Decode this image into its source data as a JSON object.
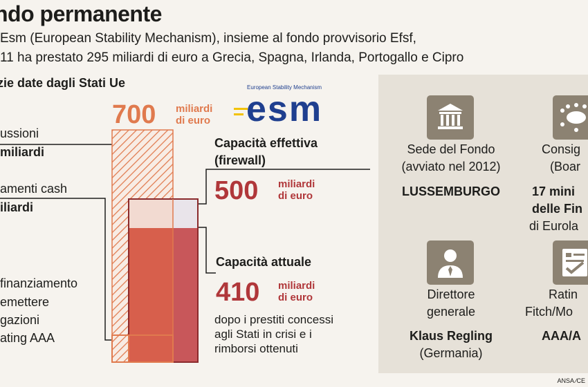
{
  "header": {
    "title": "ndo permanente",
    "line1": "Esm (European Stability Mechanism), insieme al fondo provvisorio Efsf,",
    "line2": "11 ha prestato 295 miliardi di euro a Grecia, Spagna, Irlanda, Portogallo e Cipro"
  },
  "left": {
    "section": "zie date dagli Stati Ue",
    "item1_a": "ussioni",
    "item1_b": "miliardi",
    "item2_a": "amenti cash",
    "item2_b": "iliardi",
    "item3_a": "finanziamento",
    "item3_b": "emettere",
    "item3_c": "gazioni",
    "item3_d": "ating AAA"
  },
  "esm_logo": {
    "small_text": "European Stability Mechanism",
    "text": "esm"
  },
  "figures": {
    "total_value": "700",
    "total_unit_1": "miliardi",
    "total_unit_2": "di euro",
    "effective_title_1": "Capacità effettiva",
    "effective_title_2": "(firewall)",
    "effective_value": "500",
    "effective_unit_1": "miliardi",
    "effective_unit_2": "di euro",
    "current_title": "Capacità attuale",
    "current_value": "410",
    "current_unit_1": "miliardi",
    "current_unit_2": "di euro",
    "current_note": "dopo i prestiti concessi agli Stati in crisi e i rimborsi ottenuti"
  },
  "panel": {
    "sede_1": "Sede del Fondo",
    "sede_2": "(avviato nel 2012)",
    "sede_value": "LUSSEMBURGO",
    "cons_1": "Consig",
    "cons_2": "(Boar",
    "cons_v1": "17 mini",
    "cons_v2": "delle Fin",
    "cons_v3": "di Eurola",
    "dir_1": "Direttore",
    "dir_2": "generale",
    "dir_value": "Klaus Regling",
    "dir_country": "(Germania)",
    "rat_1": "Ratin",
    "rat_2": "Fitch/Mo",
    "rat_value": "AAA/A"
  },
  "colors": {
    "orange": "#e07a4e",
    "red": "#b0373a",
    "dark_red": "#8a2a2c",
    "panel_bg": "#e6e1d8",
    "tile": "#8c8272",
    "esm_blue": "#1f3f8f"
  },
  "credit": "ANSA ⁄CE"
}
